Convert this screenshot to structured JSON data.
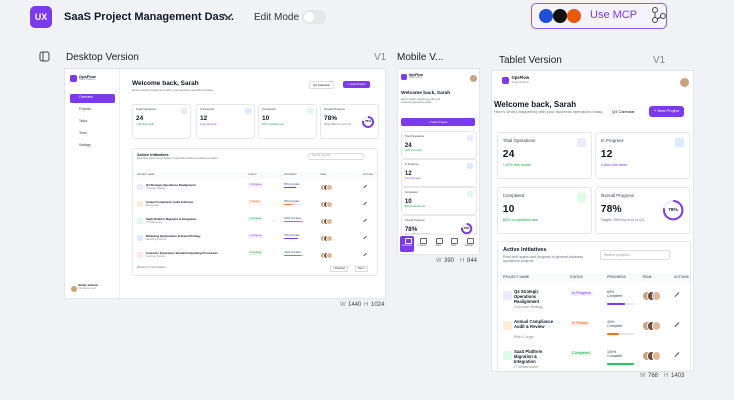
{
  "toolbar": {
    "logo": "UX",
    "title": "SaaS Project Management Das...",
    "edit_mode": "Edit Mode",
    "mcp": "Use MCP"
  },
  "frames": [
    {
      "label": "Desktop Version",
      "version": "V1",
      "w_label": "W",
      "width": 1440,
      "h_label": "H",
      "height": 1024
    },
    {
      "label": "Mobile V...",
      "w_label": "W",
      "width": 390,
      "h_label": "H",
      "height": 844
    },
    {
      "label": "Tablet Version",
      "version": "V1",
      "w_label": "W",
      "width": 768,
      "h_label": "H",
      "height": 1403
    }
  ],
  "app": {
    "brand": "OpsFlow",
    "brand_sub": "SaaS Platform",
    "nav": [
      "Overview",
      "Projects",
      "Tasks",
      "Team",
      "Settings"
    ],
    "user": "Sarah Jenkins",
    "user_role": "Operations Lead",
    "welcome": "Welcome back, Sarah",
    "subtitle": "Here's what's happening with your business operations today.",
    "calendar": "Q4 Calendar",
    "new_project": "+ New Project",
    "stats": [
      {
        "label": "Total Operations",
        "value": "24",
        "note": "+12% this month",
        "note_color": "#16a34a"
      },
      {
        "label": "In Progress",
        "value": "12",
        "note": "4 due this week",
        "note_color": "#7c3aed"
      },
      {
        "label": "Completed",
        "value": "10",
        "note": "83% completion rate",
        "note_color": "#16a34a"
      },
      {
        "label": "Overall Progress",
        "value": {
          "value": 78,
          "label": "78%"
        },
        "note": "Target: 85% by end of Q4",
        "note_color": "#6b7280"
      }
    ],
    "initiatives": {
      "title": "Active Initiatives",
      "subtitle": "Real-time status and progress of general business operations projects.",
      "search": "Search projects...",
      "columns": [
        "PROJECT NAME",
        "STATUS",
        "PROGRESS",
        "TEAM",
        "ACTIONS"
      ],
      "rows": [
        {
          "name": "Q4 Strategic Operations Realignment",
          "sub": "Corporate Strategy",
          "status": "In Progress",
          "status_color": "#7c3aed",
          "icon_color": "#ede9fe",
          "progress": {
            "value": 65,
            "label": "65% Complete"
          },
          "bar_color": "#7c3aed"
        },
        {
          "name": "Annual Compliance Audit & Review",
          "sub": "Risk & Legal",
          "status": "In Review",
          "status_color": "#ea580c",
          "icon_color": "#ffedd5",
          "progress": {
            "value": 45,
            "label": "45% Complete"
          },
          "bar_color": "#f97316"
        },
        {
          "name": "SaaS Platform Migration & Integration",
          "sub": "IT Infrastructure",
          "status": "Completed",
          "status_color": "#16a34a",
          "icon_color": "#dcfce7",
          "progress": {
            "value": 100,
            "label": "100% Complete"
          },
          "bar_color": "#22c55e"
        },
        {
          "name": "Marketing Optimization & Brand Strategy",
          "sub": "Marketing & Growth",
          "status": "In Progress",
          "status_color": "#7c3aed",
          "icon_color": "#dbeafe",
          "progress": {
            "value": 75,
            "label": "75% Complete"
          },
          "bar_color": "#7c3aed"
        },
        {
          "name": "Customer Experience Standard Operating Procedures",
          "sub": "Customer Success",
          "status": "Completed",
          "status_color": "#16a34a",
          "icon_color": "#fce7f3",
          "progress": {
            "value": 100,
            "label": "100% Complete"
          },
          "bar_color": "#22c55e"
        }
      ],
      "footer": "Showing 5 of 24 initiatives",
      "prev": "< Previous",
      "next": "Next >"
    }
  }
}
